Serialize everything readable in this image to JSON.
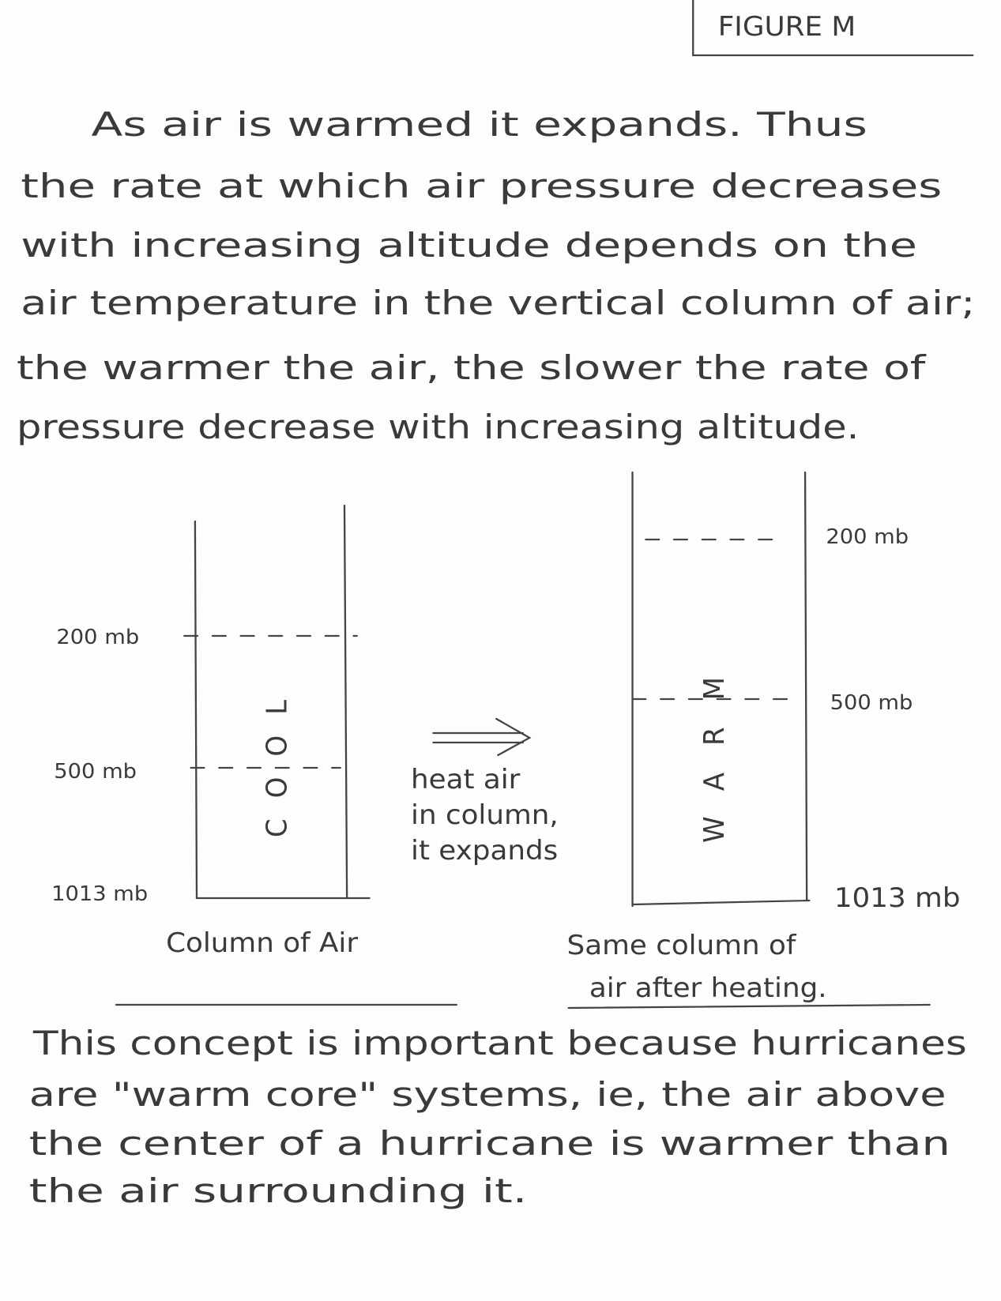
{
  "header": {
    "figure_label": "FIGURE M"
  },
  "intro": {
    "lines": [
      "As air is warmed it expands. Thus",
      "the rate at which air pressure decreases",
      "with increasing altitude depends on the",
      "air temperature in the vertical column of air;",
      "the warmer the air, the slower the rate of",
      "pressure decrease with increasing altitude."
    ]
  },
  "left_column": {
    "levels": [
      "200 mb",
      "500 mb",
      "1013 mb"
    ],
    "core": "COOL",
    "caption": "Column of Air"
  },
  "arrow": {
    "label_lines": [
      "heat air",
      "in column,",
      "it expands"
    ]
  },
  "right_column": {
    "levels": [
      "200 mb",
      "500 mb",
      "1013 mb"
    ],
    "core": "WARM",
    "caption_lines": [
      "Same column of",
      "air after heating."
    ]
  },
  "conclusion": {
    "lines": [
      "This concept is important because hurricanes",
      "are \"warm core\" systems, ie, the air above",
      "the center of a hurricane is warmer than",
      "the air surrounding it."
    ]
  }
}
